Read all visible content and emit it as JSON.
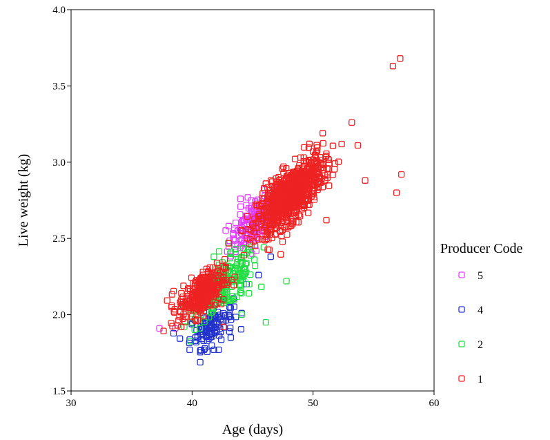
{
  "chart_data": {
    "type": "scatter",
    "title": "",
    "xlabel": "Age (days)",
    "ylabel": "Live weight (kg)",
    "xlim": [
      30,
      60
    ],
    "ylim": [
      1.5,
      4.0
    ],
    "x_ticks": [
      "30",
      "40",
      "50",
      "60"
    ],
    "y_ticks": [
      "1.5",
      "2.0",
      "2.5",
      "3.0",
      "3.5",
      "4.0"
    ],
    "grid": false,
    "marker": "open-square",
    "legend": {
      "title": "Producer Code",
      "placement": "right"
    },
    "series": [
      {
        "name": "5",
        "color": "#e040fb",
        "clusters": [
          {
            "cx": 45.3,
            "cy": 2.62,
            "sx": 1.1,
            "sy": 0.1,
            "n": 170,
            "r": 0.65
          }
        ],
        "points": [
          [
            37.3,
            1.91
          ],
          [
            38.6,
            1.91
          ],
          [
            44.0,
            2.76
          ],
          [
            45.3,
            2.42
          ],
          [
            46.0,
            2.82
          ]
        ]
      },
      {
        "name": "4",
        "color": "#2233cc",
        "clusters": [
          {
            "cx": 41.6,
            "cy": 1.93,
            "sx": 0.9,
            "sy": 0.07,
            "n": 120,
            "r": 0.5
          }
        ],
        "points": [
          [
            39.8,
            1.77
          ],
          [
            41.0,
            1.77
          ],
          [
            41.8,
            1.77
          ],
          [
            42.2,
            1.77
          ],
          [
            43.2,
            1.85
          ],
          [
            45.5,
            2.26
          ],
          [
            46.5,
            2.38
          ],
          [
            44.5,
            2.2
          ]
        ]
      },
      {
        "name": "2",
        "color": "#22dd44",
        "clusters": [
          {
            "cx": 42.8,
            "cy": 2.2,
            "sx": 1.3,
            "sy": 0.11,
            "n": 210,
            "r": 0.72
          }
        ],
        "points": [
          [
            47.8,
            2.22
          ],
          [
            46.1,
            1.95
          ],
          [
            44.1,
            2.0
          ],
          [
            44.7,
            2.14
          ],
          [
            41.8,
            2.38
          ],
          [
            43.0,
            2.47
          ]
        ]
      },
      {
        "name": "1",
        "color": "#ee2222",
        "clusters": [
          {
            "cx": 48.1,
            "cy": 2.78,
            "sx": 1.35,
            "sy": 0.12,
            "n": 900,
            "r": 0.72
          },
          {
            "cx": 40.8,
            "cy": 2.14,
            "sx": 0.95,
            "sy": 0.08,
            "n": 320,
            "r": 0.55
          }
        ],
        "points": [
          [
            57.2,
            3.68
          ],
          [
            56.6,
            3.63
          ],
          [
            53.2,
            3.26
          ],
          [
            53.7,
            3.11
          ],
          [
            57.3,
            2.92
          ],
          [
            56.9,
            2.8
          ],
          [
            54.3,
            2.88
          ],
          [
            50.8,
            3.19
          ],
          [
            51.2,
            2.92
          ],
          [
            51.1,
            2.62
          ],
          [
            49.7,
            3.12
          ],
          [
            38.3,
            2.05
          ],
          [
            38.8,
            1.93
          ],
          [
            39.1,
            1.92
          ],
          [
            42.6,
            1.92
          ]
        ]
      }
    ]
  }
}
